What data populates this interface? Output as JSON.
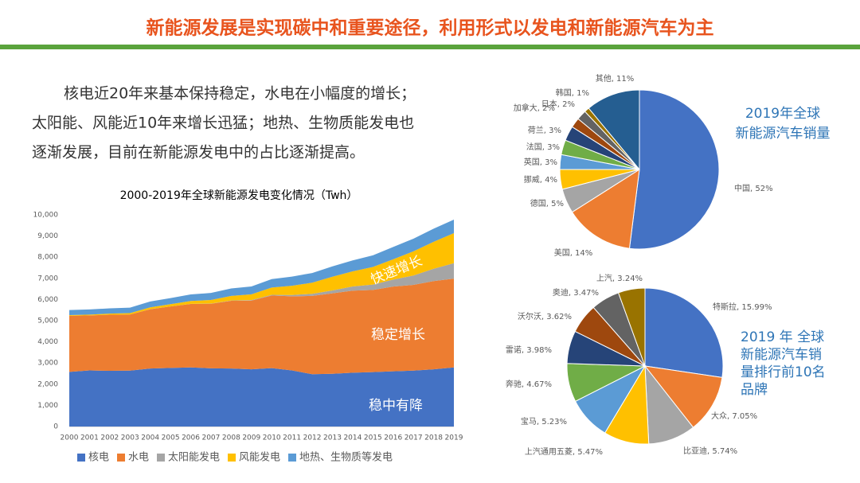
{
  "header": {
    "title": "新能源发展是实现碳中和重要途径，利用形式以发电和新能源汽车为主"
  },
  "paragraph": [
    "核电近20年来基本保持稳定，水电在小幅度的增长；",
    "太阳能、风能近10年来增长迅猛；地热、生物质能发电也",
    "逐渐发展，目前在新能源发电中的占比逐渐提高。"
  ],
  "chart_data": [
    {
      "type": "stacked-area",
      "title": "2000-2019年全球新能源发电变化情况（Twh）",
      "categories": [
        "2000",
        "2001",
        "2002",
        "2003",
        "2004",
        "2005",
        "2006",
        "2007",
        "2008",
        "2009",
        "2010",
        "2011",
        "2012",
        "2013",
        "2014",
        "2015",
        "2016",
        "2017",
        "2018",
        "2019"
      ],
      "series": [
        {
          "name": "核电",
          "color": "#4472c4",
          "values": [
            2580,
            2650,
            2630,
            2640,
            2740,
            2770,
            2790,
            2750,
            2740,
            2700,
            2760,
            2650,
            2470,
            2490,
            2540,
            2570,
            2610,
            2640,
            2700,
            2790
          ]
        },
        {
          "name": "水电",
          "color": "#ed7d31",
          "values": [
            2650,
            2600,
            2650,
            2650,
            2800,
            2900,
            3000,
            3050,
            3200,
            3250,
            3430,
            3500,
            3700,
            3800,
            3880,
            3880,
            4000,
            4050,
            4170,
            4200
          ]
        },
        {
          "name": "太阳能发电",
          "color": "#a5a5a5",
          "values": [
            1,
            1,
            2,
            3,
            3,
            4,
            6,
            8,
            12,
            21,
            32,
            64,
            100,
            139,
            197,
            256,
            329,
            444,
            585,
            724
          ]
        },
        {
          "name": "风能发电",
          "color": "#ffc000",
          "values": [
            31,
            38,
            52,
            63,
            85,
            104,
            133,
            171,
            220,
            276,
            342,
            437,
            523,
            646,
            712,
            831,
            962,
            1140,
            1270,
            1420
          ]
        },
        {
          "name": "地热、生物质等发电",
          "color": "#5b9bd5",
          "values": [
            240,
            240,
            250,
            260,
            280,
            290,
            310,
            330,
            350,
            370,
            400,
            430,
            460,
            490,
            520,
            550,
            580,
            600,
            620,
            640
          ]
        }
      ],
      "ylim": [
        0,
        10000
      ],
      "yticks": [
        0,
        {
          "value": 1000,
          "label": "1,000"
        },
        {
          "value": 2000,
          "label": "2,000"
        },
        {
          "value": 3000,
          "label": "3,000"
        },
        {
          "value": 4000,
          "label": "4,000"
        },
        {
          "value": 5000,
          "label": "5,000"
        },
        {
          "value": 6000,
          "label": "6,000"
        },
        {
          "value": 7000,
          "label": "7,000"
        },
        {
          "value": 8000,
          "label": "8,000"
        },
        {
          "value": 9000,
          "label": "9,000"
        },
        {
          "value": 10000,
          "label": "10,000"
        }
      ],
      "annotations": [
        "快速增长",
        "稳定增长",
        "稳中有降"
      ],
      "legend": "bottom"
    },
    {
      "type": "pie",
      "title": [
        "2019年全球",
        "新能源汽车销量"
      ],
      "values": [
        52,
        14,
        5,
        4,
        3,
        3,
        3,
        2,
        2,
        1,
        11
      ],
      "value_labels": [
        "中国, 52%",
        "美国, 14%",
        "德国, 5%",
        "挪威, 4%",
        "英国, 3%",
        "法国, 3%",
        "荷兰, 3%",
        "加拿大, 2%",
        "日本, 2%",
        "韩国, 1%",
        "其他, 11%"
      ],
      "colors": [
        "#4472c4",
        "#ed7d31",
        "#a5a5a5",
        "#ffc000",
        "#5b9bd5",
        "#70ad47",
        "#264478",
        "#9e480e",
        "#636363",
        "#997300",
        "#255e91"
      ]
    },
    {
      "type": "pie",
      "title": [
        "2019 年 全球",
        "新能源汽车销",
        "量排行前10名",
        "品牌"
      ],
      "values": [
        15.99,
        7.05,
        5.74,
        5.47,
        5.23,
        4.67,
        3.98,
        3.62,
        3.47,
        3.24
      ],
      "value_labels": [
        "特斯拉, 15.99%",
        "大众, 7.05%",
        "比亚迪, 5.74%",
        "上汽通用五菱, 5.47%",
        "宝马, 5.23%",
        "奔驰, 4.67%",
        "雷诺, 3.98%",
        "沃尔沃, 3.62%",
        "奥迪, 3.47%",
        "上汽, 3.24%"
      ],
      "colors": [
        "#4472c4",
        "#ed7d31",
        "#a5a5a5",
        "#ffc000",
        "#5b9bd5",
        "#70ad47",
        "#264478",
        "#9e480e",
        "#636363",
        "#997300"
      ]
    }
  ]
}
